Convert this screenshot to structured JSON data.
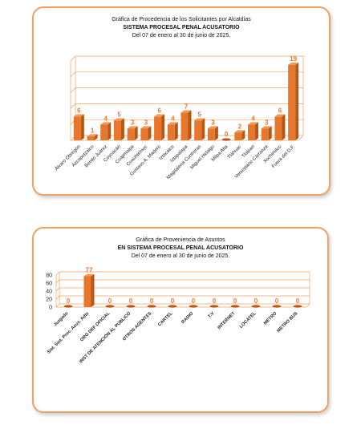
{
  "colors": {
    "bar_front": "#e8772e",
    "bar_side": "#b55716",
    "bar_top": "#f29a55",
    "label": "#e8772e",
    "grid": "#f0a060",
    "panel_border": "#f0a060"
  },
  "chart1": {
    "title_line1": "Gráfica de Procedencia de los Solicitantes por Alcaldías",
    "title_line2": "SISTEMA PROCESAL PENAL ACUSATORIO",
    "title_line3": "Del  07 de enero  al  30 de junio de  2025."
  },
  "chart2": {
    "title_line1": "Gráfica de Proveniencia de Asuntos",
    "title_line2": "EN SISTEMA PROCESAL PENAL ACUSATORIO",
    "title_line3": "Del  07 de enero  al  30 de junio de  2025."
  },
  "chart_data": [
    {
      "type": "bar",
      "title": "Gráfica de Procedencia de los Solicitantes por Alcaldías",
      "subtitle": "SISTEMA PROCESAL PENAL ACUSATORIO — Del 07 de enero al 30 de junio de 2025.",
      "categories": [
        "Álvaro Obregón",
        "Azcapotzalco",
        "Benito Juárez",
        "Coyoacán",
        "Cuajimalpa",
        "Cuauhtémoc",
        "Gustavo A. Madero",
        "Iztacalco",
        "Iztapalapa",
        "Magdalena Contreras",
        "Miguel Hidalgo",
        "Milpa Alta",
        "Tláhuac",
        "Tlalpan",
        "Venustiano Carranza",
        "Xochimilco",
        "Fuera del D.F."
      ],
      "values": [
        6,
        1,
        4,
        5,
        3,
        3,
        6,
        4,
        7,
        5,
        3,
        0,
        2,
        4,
        3,
        6,
        19
      ],
      "ylim": [
        0,
        20
      ],
      "grid": true,
      "three_d": true,
      "legend": "none"
    },
    {
      "type": "bar",
      "title": "Gráfica de Proveniencia de Asuntos",
      "subtitle": "EN SISTEMA PROCESAL PENAL ACUSATORIO — Del 07 de enero al 30 de junio de 2025.",
      "categories": [
        "Juzgado",
        "Sist. Sist. Proc. Acus. Adts",
        "ORG DEF OFICIAL",
        "INST DE ATENCIÓN AL PÚBLICO",
        "OTROS AGENTES",
        "CARTEL",
        "RADIO",
        "T.V",
        "INTERNET",
        "LOCATEL",
        "METRO",
        "METRO BUS"
      ],
      "values": [
        0,
        77,
        0,
        0,
        0,
        0,
        0,
        0,
        0,
        0,
        0,
        0
      ],
      "y_ticks": [
        "0",
        "20",
        "40",
        "60",
        "80"
      ],
      "ylim": [
        0,
        80
      ],
      "grid": true,
      "three_d": true,
      "legend": "none"
    }
  ]
}
